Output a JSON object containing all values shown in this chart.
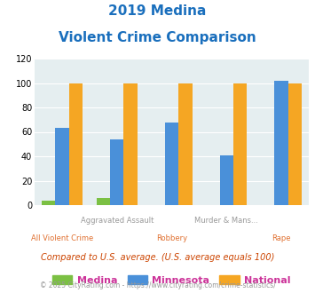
{
  "title_line1": "2019 Medina",
  "title_line2": "Violent Crime Comparison",
  "top_labels": [
    "",
    "Aggravated Assault",
    "",
    "Murder & Mans...",
    ""
  ],
  "bottom_labels": [
    "All Violent Crime",
    "",
    "Robbery",
    "",
    "Rape"
  ],
  "medina": [
    4,
    6,
    0,
    0,
    0
  ],
  "minnesota": [
    63,
    54,
    68,
    41,
    102
  ],
  "national": [
    100,
    100,
    100,
    100,
    100
  ],
  "medina_color": "#7bc043",
  "minnesota_color": "#4a90d9",
  "national_color": "#f5a623",
  "title_color": "#1a6fbd",
  "top_label_color": "#999999",
  "bot_label_color": "#e07030",
  "legend_text_color": "#cc3399",
  "footnote1_color": "#cc4400",
  "footnote2_color": "#999999",
  "bg_color": "#e5eef0",
  "grid_color": "#ffffff",
  "ylim": [
    0,
    120
  ],
  "yticks": [
    0,
    20,
    40,
    60,
    80,
    100,
    120
  ],
  "legend_labels": [
    "Medina",
    "Minnesota",
    "National"
  ],
  "footnote1": "Compared to U.S. average. (U.S. average equals 100)",
  "footnote2": "© 2025 CityRating.com - https://www.cityrating.com/crime-statistics/",
  "bar_width": 0.25
}
